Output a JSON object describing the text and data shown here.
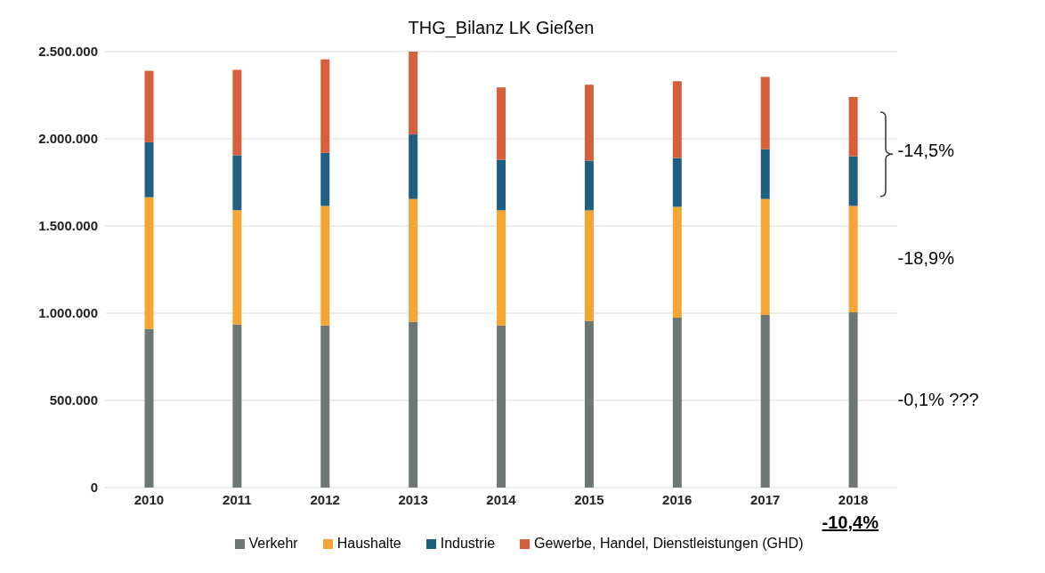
{
  "chart_data": {
    "type": "bar",
    "title": "THG_Bilanz LK Gießen",
    "stacked": true,
    "categories": [
      "2010",
      "2011",
      "2012",
      "2013",
      "2014",
      "2015",
      "2016",
      "2017",
      "2018"
    ],
    "series": [
      {
        "name": "Verkehr",
        "color": "#6e7676",
        "values": [
          910000,
          935000,
          930000,
          950000,
          930000,
          955000,
          975000,
          990000,
          1005000
        ]
      },
      {
        "name": "Haushalte",
        "color": "#f5a533",
        "values": [
          755000,
          655000,
          685000,
          705000,
          660000,
          635000,
          635000,
          665000,
          610000
        ]
      },
      {
        "name": "Industrie",
        "color": "#1f5f80",
        "values": [
          315000,
          315000,
          305000,
          370000,
          290000,
          285000,
          280000,
          285000,
          285000
        ]
      },
      {
        "name": "Gewerbe, Handel, Dienstleistungen (GHD)",
        "color": "#d65f3c",
        "values": [
          410000,
          490000,
          535000,
          480000,
          415000,
          435000,
          440000,
          415000,
          340000
        ]
      }
    ],
    "ylim": [
      0,
      2500000
    ],
    "yticks": [
      0,
      {
        "value": 500000,
        "label": "500.000"
      },
      {
        "value": 1000000,
        "label": "1.000.000"
      },
      {
        "value": 1500000,
        "label": "1.500.000"
      },
      {
        "value": 2000000,
        "label": "2.000.000"
      },
      {
        "value": 2500000,
        "label": "2.500.000"
      }
    ],
    "grid": "y",
    "legend": "bottom",
    "annotations": [
      "-14,5%",
      "-18,9%",
      "-0,1% ???",
      "-10,4%"
    ]
  }
}
